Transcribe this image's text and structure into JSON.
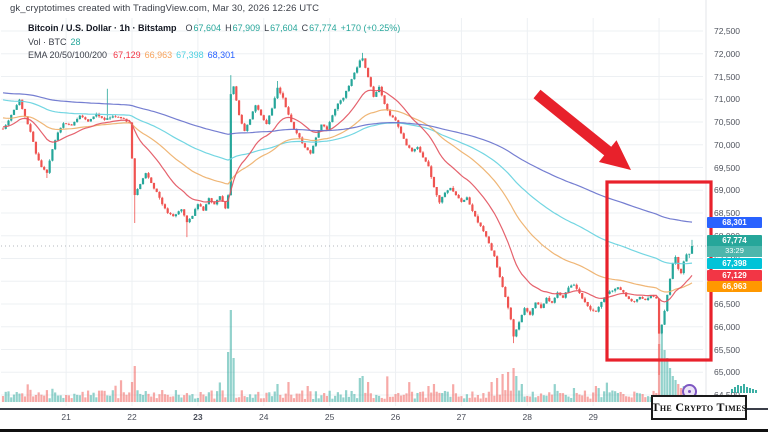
{
  "header": {
    "attribution": "gk_cryptotimes created with TradingView.com, Mar 30, 2026 12:26 UTC"
  },
  "legend": {
    "symbol_line": "Bitcoin / U.S. Dollar · 1h · Bitstamp",
    "ohlc_pairs": [
      [
        "O",
        "67,604"
      ],
      [
        "H",
        "67,909"
      ],
      [
        "L",
        "67,604"
      ],
      [
        "C",
        "67,774"
      ]
    ],
    "change": "+170 (+0.25%)",
    "ohlc_color": "#26a69a",
    "volume_label": "Vol · BTC",
    "volume_value": "28",
    "ema_label": "EMA 20/50/100/200",
    "ema_values": [
      {
        "value": "67,129",
        "color": "#f23645"
      },
      {
        "value": "66,963",
        "color": "#f7a35c"
      },
      {
        "value": "67,398",
        "color": "#4dd0e1"
      },
      {
        "value": "68,301",
        "color": "#2962ff"
      }
    ]
  },
  "axis_badges": {
    "ema200": {
      "label": "68,301",
      "value": 68301,
      "color": "#2962ff"
    },
    "price": {
      "label": "67,774",
      "countdown": "33:29",
      "value": 67774,
      "color": "#26a69a",
      "countdown_color": "#4db6ac"
    },
    "ema100": {
      "label": "67,398",
      "value": 67398,
      "color": "#00c3d8"
    },
    "ema20": {
      "label": "67,129",
      "value": 67129,
      "color": "#f23645"
    },
    "ema50": {
      "label": "66,963",
      "value": 66963,
      "color": "#ff9800"
    }
  },
  "watermark": {
    "text": "The Crypto Times"
  },
  "annotations": {
    "arrow_color": "#e8212b",
    "box_color": "#e8212b"
  },
  "chart_data": {
    "type": "candlestick",
    "symbol": "BTCUSD",
    "exchange": "Bitstamp",
    "timeframe": "1h",
    "title": "Bitcoin / U.S. Dollar",
    "last_bar": {
      "open": 67604,
      "high": 67909,
      "low": 67604,
      "close": 67774
    },
    "y_axis": {
      "min": 64500,
      "max": 72500,
      "tick_step": 500,
      "tick_labels": [
        "72,500",
        "72,000",
        "71,500",
        "71,000",
        "70,500",
        "70,000",
        "69,500",
        "69,000",
        "68,500",
        "68,000",
        "67,500",
        "67,000",
        "66,500",
        "66,000",
        "65,500",
        "65,000",
        "64,500"
      ]
    },
    "x_axis": {
      "day_labels": [
        "21",
        "22",
        "23",
        "24",
        "25",
        "26",
        "27",
        "28",
        "29"
      ],
      "bold_label": "23",
      "hours_per_day": 24
    },
    "grid": true,
    "legend_position": "top-left",
    "price_keyframes": [
      [
        0,
        70350
      ],
      [
        2,
        70520
      ],
      [
        4,
        70780
      ],
      [
        6,
        70980
      ],
      [
        8,
        70620
      ],
      [
        10,
        70280
      ],
      [
        12,
        69820
      ],
      [
        14,
        69520
      ],
      [
        16,
        69380
      ],
      [
        18,
        69900
      ],
      [
        20,
        70280
      ],
      [
        22,
        70480
      ],
      [
        25,
        70420
      ],
      [
        28,
        70650
      ],
      [
        31,
        70520
      ],
      [
        34,
        70680
      ],
      [
        37,
        70550
      ],
      [
        40,
        70620
      ],
      [
        43,
        70600
      ],
      [
        46,
        70480
      ],
      [
        47,
        69700
      ],
      [
        48,
        68900
      ],
      [
        50,
        69150
      ],
      [
        52,
        69380
      ],
      [
        54,
        69150
      ],
      [
        56,
        68950
      ],
      [
        58,
        68700
      ],
      [
        60,
        68500
      ],
      [
        62,
        68420
      ],
      [
        65,
        68580
      ],
      [
        67,
        68300
      ],
      [
        69,
        68450
      ],
      [
        71,
        68700
      ],
      [
        73,
        68560
      ],
      [
        75,
        68820
      ],
      [
        77,
        68680
      ],
      [
        79,
        68880
      ],
      [
        81,
        68600
      ],
      [
        82,
        68900
      ],
      [
        83,
        71100
      ],
      [
        84,
        71280
      ],
      [
        86,
        70650
      ],
      [
        88,
        70300
      ],
      [
        90,
        70560
      ],
      [
        92,
        70880
      ],
      [
        94,
        70650
      ],
      [
        96,
        70460
      ],
      [
        98,
        70800
      ],
      [
        100,
        71240
      ],
      [
        102,
        71020
      ],
      [
        104,
        70650
      ],
      [
        106,
        70350
      ],
      [
        108,
        70150
      ],
      [
        110,
        69930
      ],
      [
        112,
        69800
      ],
      [
        114,
        70150
      ],
      [
        116,
        70460
      ],
      [
        118,
        70340
      ],
      [
        120,
        70650
      ],
      [
        122,
        70900
      ],
      [
        124,
        71040
      ],
      [
        126,
        71300
      ],
      [
        128,
        71580
      ],
      [
        130,
        71840
      ],
      [
        131,
        71900
      ],
      [
        133,
        71500
      ],
      [
        135,
        71060
      ],
      [
        137,
        71260
      ],
      [
        139,
        70900
      ],
      [
        141,
        70640
      ],
      [
        143,
        70540
      ],
      [
        145,
        70260
      ],
      [
        147,
        70000
      ],
      [
        149,
        69850
      ],
      [
        151,
        69960
      ],
      [
        153,
        69730
      ],
      [
        155,
        69540
      ],
      [
        157,
        69060
      ],
      [
        159,
        68740
      ],
      [
        161,
        68960
      ],
      [
        163,
        69060
      ],
      [
        165,
        68900
      ],
      [
        167,
        68740
      ],
      [
        169,
        68840
      ],
      [
        171,
        68540
      ],
      [
        173,
        68300
      ],
      [
        175,
        68100
      ],
      [
        177,
        67840
      ],
      [
        179,
        67540
      ],
      [
        181,
        67080
      ],
      [
        183,
        66660
      ],
      [
        185,
        66160
      ],
      [
        186,
        65800
      ],
      [
        188,
        66100
      ],
      [
        190,
        66400
      ],
      [
        192,
        66260
      ],
      [
        194,
        66540
      ],
      [
        196,
        66420
      ],
      [
        198,
        66620
      ],
      [
        200,
        66520
      ],
      [
        202,
        66760
      ],
      [
        204,
        66630
      ],
      [
        206,
        66860
      ],
      [
        208,
        66930
      ],
      [
        210,
        66730
      ],
      [
        212,
        66530
      ],
      [
        214,
        66360
      ],
      [
        216,
        66330
      ],
      [
        218,
        66560
      ],
      [
        220,
        66730
      ],
      [
        222,
        66800
      ],
      [
        224,
        66860
      ],
      [
        226,
        66760
      ],
      [
        228,
        66600
      ],
      [
        230,
        66540
      ],
      [
        232,
        66660
      ],
      [
        234,
        66580
      ],
      [
        236,
        66680
      ],
      [
        238,
        66620
      ],
      [
        239,
        65850
      ],
      [
        240,
        66050
      ],
      [
        241,
        66350
      ],
      [
        242,
        66700
      ],
      [
        243,
        67050
      ],
      [
        244,
        67380
      ],
      [
        245,
        67520
      ],
      [
        246,
        67280
      ],
      [
        247,
        67180
      ],
      [
        248,
        67440
      ],
      [
        249,
        67604
      ],
      [
        250,
        67560
      ],
      [
        251,
        67774
      ]
    ],
    "wick_spikes": {
      "16": {
        "low": 69270
      },
      "38": {
        "high": 71230
      },
      "48": {
        "low": 68280
      },
      "67": {
        "low": 67970
      },
      "83": {
        "high": 71530
      },
      "100": {
        "high": 71400
      },
      "131": {
        "high": 72020
      },
      "186": {
        "low": 65640
      },
      "239": {
        "low": 64939
      },
      "251": {
        "high": 67909,
        "low": 67604
      }
    },
    "volume_spikes": {
      "47": 20,
      "48": 36,
      "82": 50,
      "83": 92,
      "84": 44,
      "100": 18,
      "111": 16,
      "130": 24,
      "131": 26,
      "133": 20,
      "155": 16,
      "157": 18,
      "178": 20,
      "180": 24,
      "182": 28,
      "184": 30,
      "186": 34,
      "187": 26,
      "189": 18,
      "208": 14,
      "216": 16,
      "239": 58,
      "240": 68,
      "241": 52,
      "242": 44,
      "243": 34,
      "244": 26,
      "245": 22,
      "246": 18,
      "247": 14,
      "248": 16,
      "249": 12,
      "250": 10,
      "251": 10
    },
    "ema_end_values": {
      "ema20": 67129,
      "ema50": 66963,
      "ema100": 67398,
      "ema200": 68301
    },
    "ema_seeds": {
      "ema20": 70400,
      "ema50": 70600,
      "ema100": 71000,
      "ema200": 71150
    },
    "colors": {
      "up": "#26a69a",
      "down": "#ef5350",
      "vol_up": "rgba(38,166,154,0.5)",
      "vol_down": "rgba(239,83,80,0.5)",
      "ema20": "#e35561",
      "ema50": "#eeb06a",
      "ema100": "#67d2df",
      "ema200": "#6973cd",
      "grid": "#edf0f3",
      "price_line": "#9aa0a8"
    }
  }
}
